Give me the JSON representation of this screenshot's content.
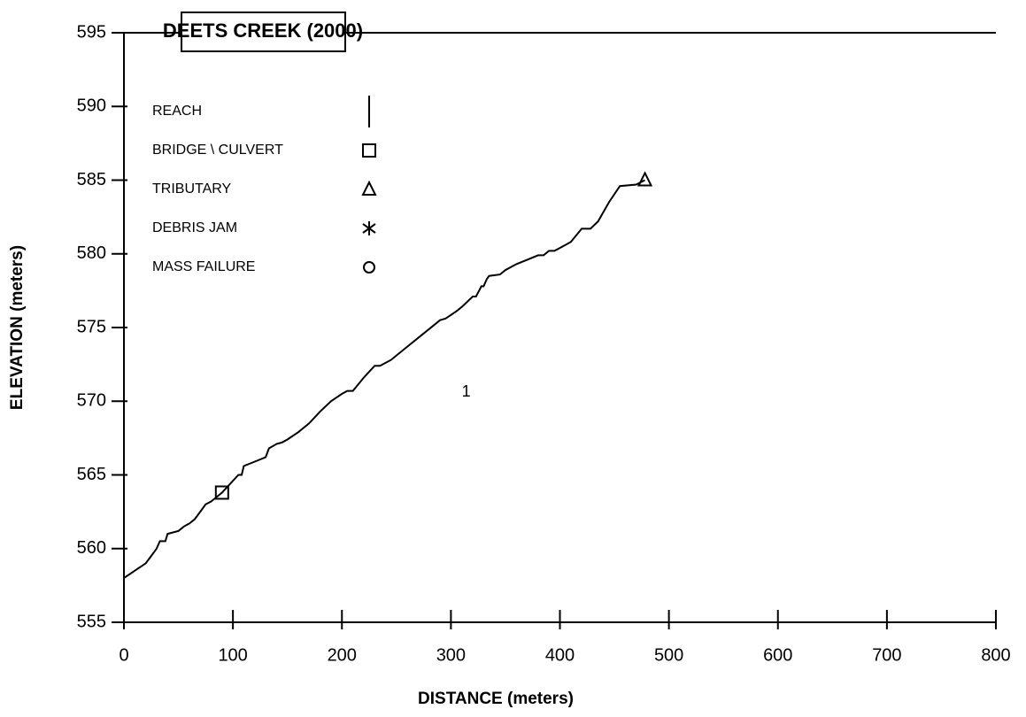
{
  "chart_data": {
    "type": "line",
    "title": "DEETS CREEK  (2000)",
    "x_label": "DISTANCE (meters)",
    "y_label": "ELEVATION (meters)",
    "xlim": [
      0,
      800
    ],
    "ylim": [
      555,
      595
    ],
    "xticks": [
      0,
      100,
      200,
      300,
      400,
      500,
      600,
      700,
      800
    ],
    "yticks": [
      555,
      560,
      565,
      570,
      575,
      580,
      585,
      590,
      595
    ],
    "color": "#000000",
    "series": [
      {
        "name": "REACH",
        "marker": "line",
        "x": [
          0,
          10,
          20,
          25,
          30,
          33,
          38,
          40,
          50,
          55,
          60,
          65,
          70,
          75,
          80,
          85,
          90,
          95,
          100,
          105,
          108,
          110,
          120,
          130,
          133,
          140,
          145,
          150,
          160,
          170,
          180,
          190,
          200,
          205,
          210,
          220,
          230,
          235,
          245,
          250,
          260,
          270,
          280,
          290,
          295,
          305,
          310,
          320,
          323,
          328,
          330,
          333,
          335,
          345,
          350,
          360,
          370,
          380,
          385,
          390,
          395,
          400,
          410,
          420,
          428,
          435,
          445,
          455,
          470,
          478
        ],
        "values": [
          558,
          558.5,
          559,
          559.5,
          560,
          560.5,
          560.5,
          561,
          561.2,
          561.5,
          561.7,
          562,
          562.5,
          563,
          563.2,
          563.5,
          563.8,
          564.2,
          564.6,
          565,
          565,
          565.6,
          565.9,
          566.2,
          566.8,
          567.1,
          567.2,
          567.4,
          567.9,
          568.5,
          569.3,
          570,
          570.5,
          570.7,
          570.7,
          571.6,
          572.4,
          572.4,
          572.8,
          573.1,
          573.7,
          574.3,
          574.9,
          575.5,
          575.6,
          576.1,
          576.4,
          577.1,
          577.1,
          577.8,
          577.8,
          578.3,
          578.5,
          578.6,
          578.9,
          579.3,
          579.6,
          579.9,
          579.9,
          580.2,
          580.2,
          580.4,
          580.8,
          581.7,
          581.7,
          582.2,
          583.5,
          584.6,
          584.7,
          585
        ]
      },
      {
        "name": "BRIDGE \\ CULVERT",
        "marker": "square",
        "x": [
          90
        ],
        "values": [
          563.8
        ]
      },
      {
        "name": "TRIBUTARY",
        "marker": "triangle",
        "x": [
          478
        ],
        "values": [
          585
        ]
      },
      {
        "name": "DEBRIS JAM",
        "marker": "asterisk",
        "x": [],
        "values": []
      },
      {
        "name": "MASS FAILURE",
        "marker": "circle",
        "x": [],
        "values": []
      }
    ],
    "annotations": [
      {
        "text": "1",
        "x": 314,
        "y": 570.6
      }
    ]
  }
}
